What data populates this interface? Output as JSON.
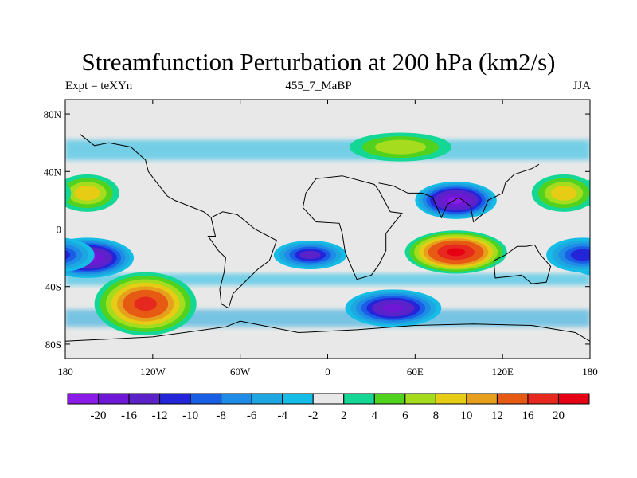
{
  "header": {
    "title": "Streamfunction Perturbation at 200 hPa (km2/s)",
    "left": "Expt = teXYn",
    "center": "455_7_MaBP",
    "right": "JJA"
  },
  "map": {
    "projection": "cylindrical equidistant",
    "lon_range": [
      -180,
      180
    ],
    "lat_range": [
      -90,
      90
    ],
    "x_ticks": [
      {
        "lon": -180,
        "label": "180"
      },
      {
        "lon": -120,
        "label": "120W"
      },
      {
        "lon": -60,
        "label": "60W"
      },
      {
        "lon": 0,
        "label": "0"
      },
      {
        "lon": 60,
        "label": "60E"
      },
      {
        "lon": 120,
        "label": "120E"
      },
      {
        "lon": 180,
        "label": "180"
      }
    ],
    "y_ticks": [
      {
        "lat": 80,
        "label": "80N"
      },
      {
        "lat": 40,
        "label": "40N"
      },
      {
        "lat": 0,
        "label": "0"
      },
      {
        "lat": -40,
        "label": "40S"
      },
      {
        "lat": -80,
        "label": "80S"
      }
    ],
    "background_color": "#e8e8e8",
    "coastline_color": "#000000"
  },
  "colorbar": {
    "labels": [
      "-20",
      "-16",
      "-12",
      "-10",
      "-8",
      "-6",
      "-4",
      "-2",
      "2",
      "4",
      "6",
      "8",
      "10",
      "12",
      "16",
      "20"
    ],
    "colors": [
      "#8a1ae6",
      "#6e18d6",
      "#5a22c8",
      "#2424d8",
      "#1a5ee6",
      "#1e8ce6",
      "#1ea6e0",
      "#14bce6",
      "#e8e8e8",
      "#14d796",
      "#50d21e",
      "#a6dc1e",
      "#e6cc14",
      "#e6a01e",
      "#e65a14",
      "#e6281e",
      "#e60014"
    ]
  },
  "features": [
    {
      "name": "cyclone-asia",
      "lon": 88,
      "lat": 20,
      "rlon": 28,
      "rlat": 13,
      "level": -20
    },
    {
      "name": "cyclone-s-pacific",
      "lon": -165,
      "lat": -20,
      "rlon": 32,
      "rlat": 14,
      "level": -20
    },
    {
      "name": "cyclone-s-atlantic-sa",
      "lon": -12,
      "lat": -18,
      "rlon": 25,
      "rlat": 10,
      "level": -12
    },
    {
      "name": "cyclone-s-indian",
      "lon": 45,
      "lat": -55,
      "rlon": 33,
      "rlat": 13,
      "level": -16
    },
    {
      "name": "cyclone-e-pacific",
      "lon": 175,
      "lat": -18,
      "rlon": 25,
      "rlat": 12,
      "level": -10
    },
    {
      "name": "anticyclone-s-asia",
      "lon": 88,
      "lat": -16,
      "rlon": 35,
      "rlat": 15,
      "level": 20
    },
    {
      "name": "anticyclone-s-pacific",
      "lon": -125,
      "lat": -52,
      "rlon": 35,
      "rlat": 22,
      "level": 16
    },
    {
      "name": "anticyclone-n-pacific-w",
      "lon": -165,
      "lat": 25,
      "rlon": 22,
      "rlat": 13,
      "level": 8
    },
    {
      "name": "anticyclone-n-pacific-e",
      "lon": 162,
      "lat": 25,
      "rlon": 22,
      "rlat": 13,
      "level": 8
    },
    {
      "name": "anticyclone-n-asia",
      "lon": 50,
      "lat": 57,
      "rlon": 35,
      "rlat": 10,
      "level": 6
    }
  ]
}
